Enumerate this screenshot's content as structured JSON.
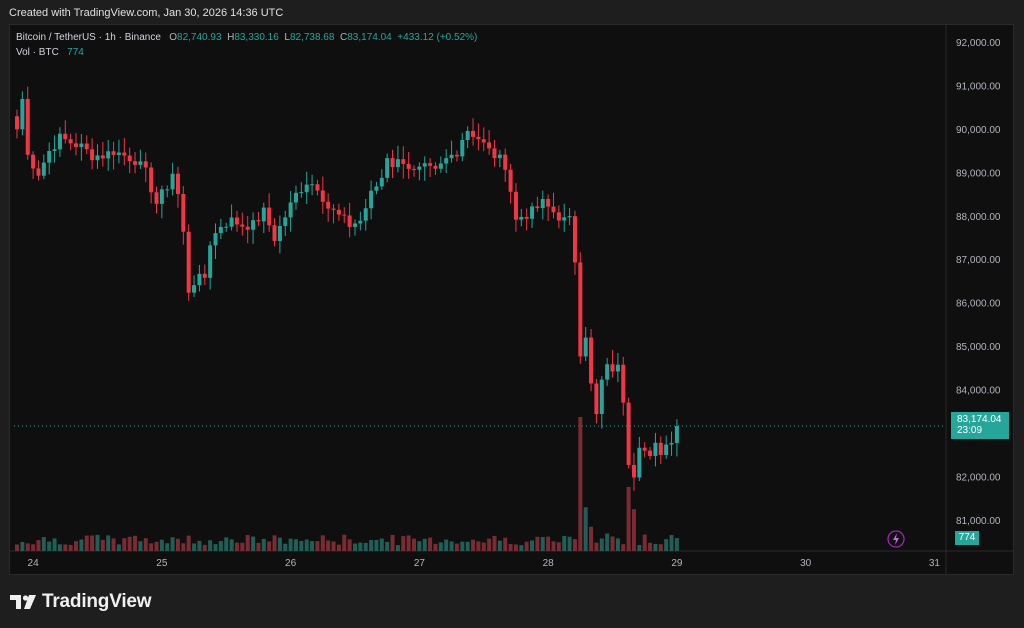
{
  "caption": "Created with TradingView.com, Jan 30, 2026 14:36 UTC",
  "brand": "TradingView",
  "legend": {
    "symbol": "Bitcoin / TetherUS · 1h · Binance",
    "o_label": "O",
    "o": "82,740.93",
    "h_label": "H",
    "h": "83,330.16",
    "l_label": "L",
    "l": "82,738.68",
    "c_label": "C",
    "c": "83,174.04",
    "change": "+433.12 (+0.52%)",
    "vol_label": "Vol · BTC",
    "vol": "774"
  },
  "last_price_tag": {
    "price": "83,174.04",
    "countdown": "23:09"
  },
  "volume_tag": "774",
  "colors": {
    "up": "#26a69a",
    "down": "#f23645",
    "up_vol": "#1f5f57",
    "down_vol": "#7a2b33",
    "bg": "#0f0f0f"
  },
  "chart_data": {
    "type": "candlestick",
    "y_ticks": [
      81000,
      82000,
      83000,
      84000,
      85000,
      86000,
      87000,
      88000,
      89000,
      90000,
      91000,
      92000
    ],
    "y_tick_labels": [
      "81,000.00",
      "82,000.00",
      "83,000.00",
      "84,000.00",
      "85,000.00",
      "86,000.00",
      "87,000.00",
      "88,000.00",
      "89,000.00",
      "90,000.00",
      "91,000.00",
      "92,000.00"
    ],
    "x_ticks": [
      {
        "label": "24",
        "index": 3
      },
      {
        "label": "25",
        "index": 27
      },
      {
        "label": "26",
        "index": 51
      },
      {
        "label": "27",
        "index": 75
      },
      {
        "label": "28",
        "index": 99
      },
      {
        "label": "29",
        "index": 123
      },
      {
        "label": "30",
        "index": 147
      },
      {
        "label": "31",
        "index": 171
      }
    ],
    "ylim": [
      80300,
      92400
    ],
    "x_count": 164,
    "last_price": 83174.04,
    "anchors_close": [
      [
        0,
        90000
      ],
      [
        1,
        90700
      ],
      [
        2,
        89400
      ],
      [
        4,
        89000
      ],
      [
        6,
        89500
      ],
      [
        8,
        89800
      ],
      [
        10,
        89700
      ],
      [
        12,
        89600
      ],
      [
        14,
        89400
      ],
      [
        16,
        89400
      ],
      [
        18,
        89500
      ],
      [
        20,
        89400
      ],
      [
        22,
        89300
      ],
      [
        24,
        89000
      ],
      [
        26,
        88300
      ],
      [
        28,
        88700
      ],
      [
        29,
        89000
      ],
      [
        30,
        88500
      ],
      [
        31,
        87600
      ],
      [
        32,
        86300
      ],
      [
        33,
        86500
      ],
      [
        35,
        86600
      ],
      [
        36,
        87400
      ],
      [
        38,
        87800
      ],
      [
        40,
        87900
      ],
      [
        42,
        87800
      ],
      [
        44,
        87800
      ],
      [
        46,
        88100
      ],
      [
        48,
        87500
      ],
      [
        50,
        88000
      ],
      [
        52,
        88500
      ],
      [
        54,
        88800
      ],
      [
        56,
        88700
      ],
      [
        58,
        88200
      ],
      [
        60,
        88000
      ],
      [
        62,
        87800
      ],
      [
        64,
        87900
      ],
      [
        66,
        88500
      ],
      [
        68,
        88900
      ],
      [
        69,
        89400
      ],
      [
        70,
        89200
      ],
      [
        72,
        89300
      ],
      [
        74,
        89000
      ],
      [
        76,
        89100
      ],
      [
        78,
        89000
      ],
      [
        80,
        89300
      ],
      [
        82,
        89500
      ],
      [
        83,
        89800
      ],
      [
        84,
        90000
      ],
      [
        86,
        89800
      ],
      [
        88,
        89500
      ],
      [
        90,
        89300
      ],
      [
        91,
        89200
      ],
      [
        92,
        88600
      ],
      [
        93,
        87900
      ],
      [
        94,
        88000
      ],
      [
        96,
        88100
      ],
      [
        98,
        88300
      ],
      [
        100,
        88100
      ],
      [
        102,
        87900
      ],
      [
        103,
        87900
      ],
      [
        104,
        87000
      ],
      [
        105,
        84900
      ],
      [
        106,
        85300
      ],
      [
        107,
        84100
      ],
      [
        108,
        83400
      ],
      [
        109,
        84200
      ],
      [
        110,
        84500
      ],
      [
        112,
        84500
      ],
      [
        113,
        83800
      ],
      [
        114,
        82400
      ],
      [
        115,
        82100
      ],
      [
        116,
        82800
      ],
      [
        117,
        82600
      ],
      [
        118,
        82400
      ],
      [
        119,
        82700
      ],
      [
        120,
        82600
      ],
      [
        122,
        82900
      ],
      [
        123,
        83174
      ]
    ],
    "volume_base": 600,
    "volume_spikes": [
      [
        105,
        13800
      ],
      [
        106,
        4500
      ],
      [
        107,
        2500
      ],
      [
        114,
        6600
      ],
      [
        115,
        4300
      ],
      [
        110,
        1800
      ],
      [
        111,
        1500
      ],
      [
        112,
        1300
      ],
      [
        100,
        1000
      ],
      [
        101,
        900
      ]
    ]
  }
}
